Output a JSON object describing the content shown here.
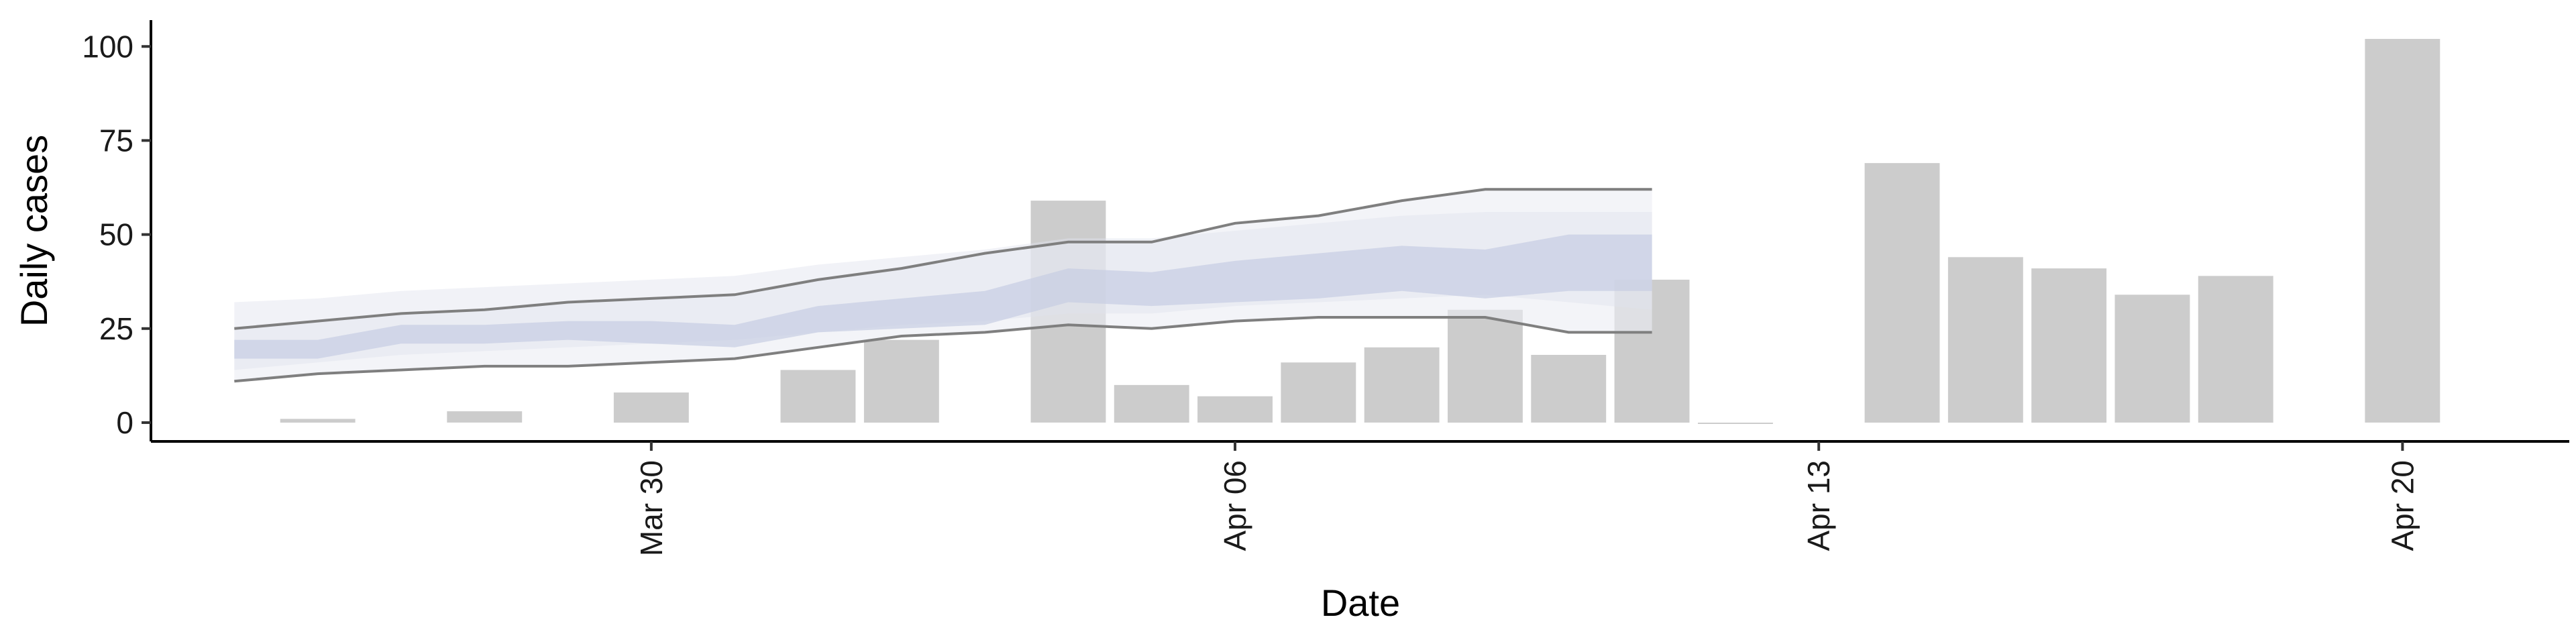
{
  "chart_data": {
    "type": "bar",
    "xlabel": "Date",
    "ylabel": "Daily cases",
    "ylim": [
      -5,
      107
    ],
    "yticks": [
      0,
      25,
      50,
      75,
      100
    ],
    "xticks": [
      {
        "date": "2020-03-30",
        "label": "Mar 30"
      },
      {
        "date": "2020-04-06",
        "label": "Apr 06"
      },
      {
        "date": "2020-04-13",
        "label": "Apr 13"
      },
      {
        "date": "2020-04-20",
        "label": "Apr 20"
      }
    ],
    "xlim": [
      "2020-03-24",
      "2020-04-22"
    ],
    "grid": false,
    "bars": {
      "name": "",
      "color": "#cccccc",
      "dates": [
        "2020-03-26",
        "2020-03-28",
        "2020-03-30",
        "2020-04-01",
        "2020-04-02",
        "2020-04-04",
        "2020-04-05",
        "2020-04-06",
        "2020-04-07",
        "2020-04-08",
        "2020-04-09",
        "2020-04-10",
        "2020-04-11",
        "2020-04-12",
        "2020-04-14",
        "2020-04-15",
        "2020-04-16",
        "2020-04-17",
        "2020-04-18",
        "2020-04-20"
      ],
      "values": [
        1,
        3,
        8,
        14,
        22,
        59,
        10,
        7,
        16,
        20,
        30,
        18,
        38,
        0,
        69,
        44,
        41,
        34,
        39,
        102
      ]
    },
    "forecast": {
      "name": "",
      "dates": [
        "2020-03-25",
        "2020-03-26",
        "2020-03-27",
        "2020-03-28",
        "2020-03-29",
        "2020-03-30",
        "2020-03-31",
        "2020-04-01",
        "2020-04-02",
        "2020-04-03",
        "2020-04-04",
        "2020-04-05",
        "2020-04-06",
        "2020-04-07",
        "2020-04-08",
        "2020-04-09",
        "2020-04-10",
        "2020-04-11"
      ],
      "outer_upper": [
        25,
        27,
        29,
        30,
        32,
        33,
        34,
        38,
        41,
        45,
        48,
        48,
        53,
        55,
        59,
        62,
        62,
        62
      ],
      "outer_lower": [
        11,
        13,
        14,
        15,
        15,
        16,
        17,
        20,
        23,
        24,
        26,
        25,
        27,
        28,
        28,
        28,
        24,
        24
      ],
      "mid_upper": [
        32,
        33,
        35,
        36,
        37,
        38,
        39,
        42,
        44,
        46,
        49,
        49,
        51,
        53,
        55,
        56,
        56,
        56
      ],
      "mid_lower": [
        14,
        16,
        18,
        19,
        20,
        21,
        22,
        24,
        26,
        27,
        29,
        29,
        31,
        32,
        33,
        34,
        32,
        30
      ],
      "inner_upper": [
        22,
        22,
        26,
        26,
        27,
        27,
        26,
        31,
        33,
        35,
        41,
        40,
        43,
        45,
        47,
        46,
        50,
        50
      ],
      "inner_lower": [
        17,
        17,
        21,
        21,
        22,
        21,
        20,
        24,
        25,
        26,
        32,
        31,
        32,
        33,
        35,
        33,
        35,
        35
      ],
      "outer_color": "#ebedf4",
      "mid_color": "#dfe3ee",
      "inner_color": "#c6cde2",
      "line_color": "#7f7f7f"
    }
  }
}
